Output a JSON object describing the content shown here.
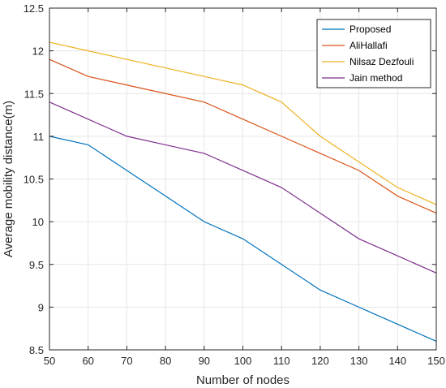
{
  "chart_data": {
    "type": "line",
    "xlabel": "Number of nodes",
    "ylabel": "Average mobility distance(m)",
    "x": [
      50,
      60,
      70,
      80,
      90,
      100,
      110,
      120,
      130,
      140,
      150
    ],
    "xlim": [
      50,
      150
    ],
    "ylim": [
      8.5,
      12.5
    ],
    "xticks": [
      50,
      60,
      70,
      80,
      90,
      100,
      110,
      120,
      130,
      140,
      150
    ],
    "yticks": [
      8.5,
      9,
      9.5,
      10,
      10.5,
      11,
      11.5,
      12,
      12.5
    ],
    "grid": true,
    "legend_position": "top-right",
    "series": [
      {
        "name": "Proposed",
        "color": "#0072BD",
        "values": [
          11.0,
          10.9,
          10.6,
          10.3,
          10.0,
          9.8,
          9.5,
          9.2,
          9.0,
          8.8,
          8.6
        ]
      },
      {
        "name": "AliHallafi",
        "color": "#D95319",
        "values": [
          11.9,
          11.7,
          11.6,
          11.5,
          11.4,
          11.2,
          11.0,
          10.8,
          10.6,
          10.3,
          10.1
        ]
      },
      {
        "name": "Nilsaz Dezfouli",
        "color": "#EDB120",
        "values": [
          12.1,
          12.0,
          11.9,
          11.8,
          11.7,
          11.6,
          11.4,
          11.0,
          10.7,
          10.4,
          10.2
        ]
      },
      {
        "name": "Jain method",
        "color": "#7E2F8E",
        "values": [
          11.4,
          11.2,
          11.0,
          10.9,
          10.8,
          10.6,
          10.4,
          10.1,
          9.8,
          9.6,
          9.4
        ]
      }
    ]
  }
}
